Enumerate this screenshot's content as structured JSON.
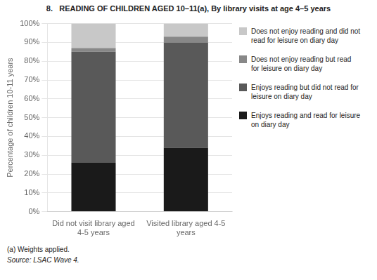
{
  "chart_data": {
    "type": "bar",
    "title": "8.   READING OF CHILDREN AGED 10–11(a), By library visits at age 4–5 years",
    "categories": [
      "Did not visit library aged\n4-5 years",
      "Visited library aged 4-5\nyears"
    ],
    "series": [
      {
        "name": "Enjoys reading and read for leisure\non diary day",
        "color": "#1a1a1a",
        "values": [
          26,
          34
        ]
      },
      {
        "name": "Enjoys reading but did not read for\nleisure on diary day",
        "color": "#595959",
        "values": [
          59,
          56
        ]
      },
      {
        "name": "Does not enjoy reading but read\nfor leisure on diary day",
        "color": "#888888",
        "values": [
          2,
          3
        ]
      },
      {
        "name": "Does not enjoy reading and did not\nread for leisure on diary day",
        "color": "#c8c8c8",
        "values": [
          13,
          7
        ]
      }
    ],
    "ylabel": "Percentage of children 10-11 years",
    "ylim": [
      0,
      100
    ],
    "yticks": [
      {
        "value": 0,
        "label": "0%"
      },
      {
        "value": 10,
        "label": "10%"
      },
      {
        "value": 20,
        "label": "20%"
      },
      {
        "value": 30,
        "label": "30%"
      },
      {
        "value": 40,
        "label": "40%"
      },
      {
        "value": 50,
        "label": "50%"
      },
      {
        "value": 60,
        "label": "60%"
      },
      {
        "value": 70,
        "label": "70%"
      },
      {
        "value": 80,
        "label": "80%"
      },
      {
        "value": 90,
        "label": "90%"
      },
      {
        "value": 100,
        "label": "100%"
      }
    ],
    "stacked": true,
    "grid": true,
    "legend": "right",
    "annotations": [
      "(a) Weights applied.",
      "Source: LSAC Wave 4."
    ]
  }
}
